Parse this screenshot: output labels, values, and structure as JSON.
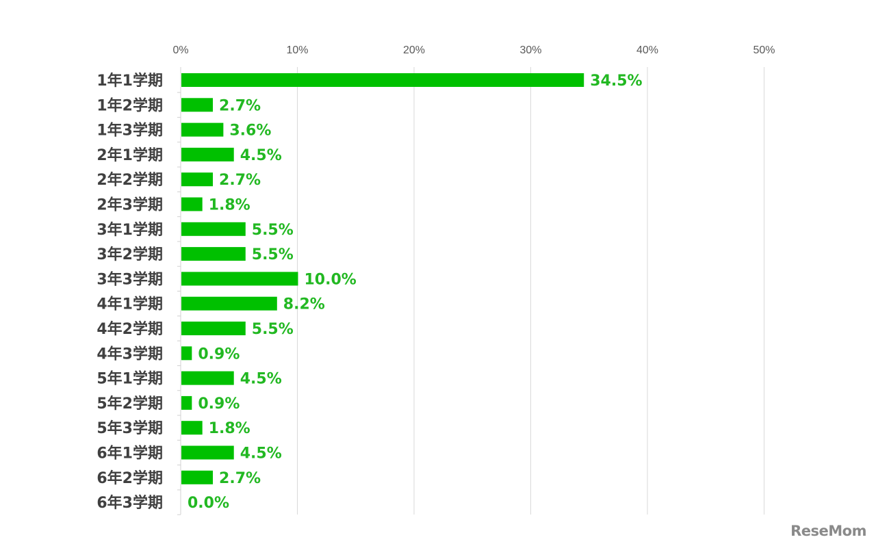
{
  "chart_data": {
    "type": "bar",
    "orientation": "horizontal",
    "categories": [
      "1年1学期",
      "1年2学期",
      "1年3学期",
      "2年1学期",
      "2年2学期",
      "2年3学期",
      "3年1学期",
      "3年2学期",
      "3年3学期",
      "4年1学期",
      "4年2学期",
      "4年3学期",
      "5年1学期",
      "5年2学期",
      "5年3学期",
      "6年1学期",
      "6年2学期",
      "6年3学期"
    ],
    "values": [
      34.5,
      2.7,
      3.6,
      4.5,
      2.7,
      1.8,
      5.5,
      5.5,
      10.0,
      8.2,
      5.5,
      0.9,
      4.5,
      0.9,
      1.8,
      4.5,
      2.7,
      0.0
    ],
    "data_labels": [
      "34.5%",
      "2.7%",
      "3.6%",
      "4.5%",
      "2.7%",
      "1.8%",
      "5.5%",
      "5.5%",
      "10.0%",
      "8.2%",
      "5.5%",
      "0.9%",
      "4.5%",
      "0.9%",
      "1.8%",
      "4.5%",
      "2.7%",
      "0.0%"
    ],
    "x_ticks": [
      "0%",
      "10%",
      "20%",
      "30%",
      "40%",
      "50%"
    ],
    "xlim": [
      0,
      50
    ],
    "axis_position": "top",
    "grid": true,
    "legend": "none",
    "bar_color": "#00c000",
    "label_color": "#22b822"
  },
  "logo": {
    "text": "ReseMom"
  }
}
